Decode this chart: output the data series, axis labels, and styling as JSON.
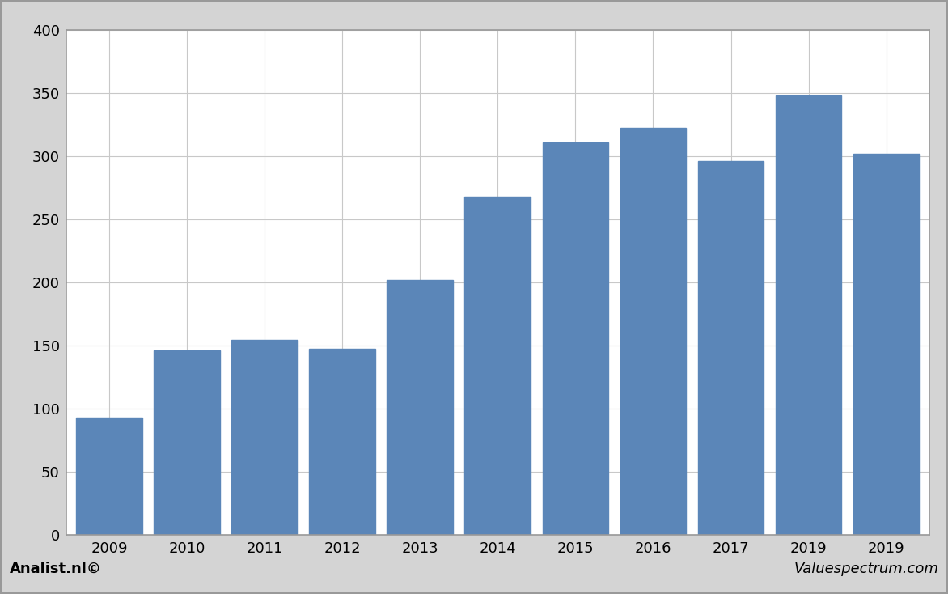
{
  "categories": [
    "2009",
    "2010",
    "2011",
    "2012",
    "2013",
    "2014",
    "2015",
    "2016",
    "2017",
    "2019",
    "2019"
  ],
  "values": [
    93,
    146,
    154,
    147,
    202,
    268,
    311,
    322,
    296,
    348,
    302
  ],
  "bar_color": "#5b86b8",
  "ylim": [
    0,
    400
  ],
  "yticks": [
    0,
    50,
    100,
    150,
    200,
    250,
    300,
    350,
    400
  ],
  "background_color": "#ffffff",
  "outer_background": "#d4d4d4",
  "footer_background": "#d4d4d4",
  "grid_color": "#c8c8c8",
  "footer_left": "Analist.nl©",
  "footer_right": "Valuespectrum.com",
  "footer_fontsize": 13,
  "tick_fontsize": 13,
  "bar_width": 0.85,
  "border_color": "#999999"
}
